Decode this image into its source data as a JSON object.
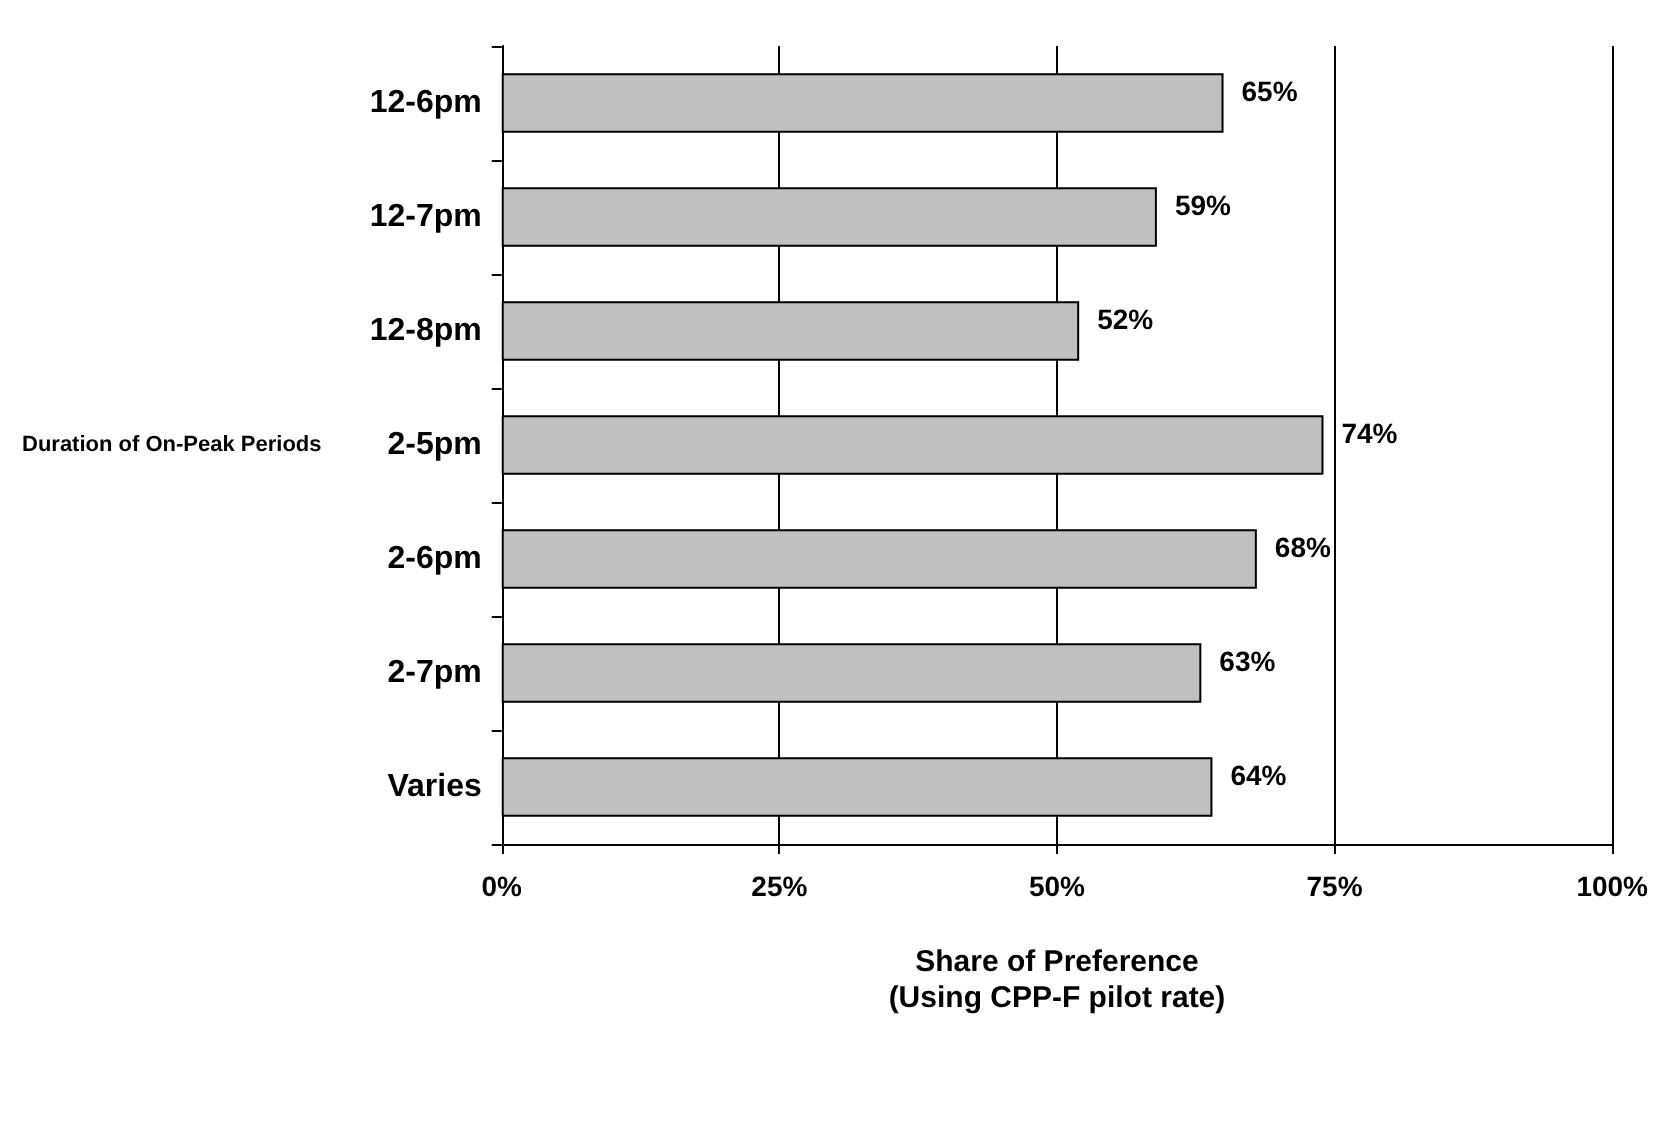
{
  "chart_data": {
    "type": "bar",
    "orientation": "horizontal",
    "categories": [
      "12-6pm",
      "12-7pm",
      "12-8pm",
      "2-5pm",
      "2-6pm",
      "2-7pm",
      "Varies"
    ],
    "values": [
      65,
      59,
      52,
      74,
      68,
      63,
      64
    ],
    "value_labels": [
      "65%",
      "59%",
      "52%",
      "74%",
      "68%",
      "63%",
      "64%"
    ],
    "color": "#c0c0c0",
    "xlim": [
      0,
      100
    ],
    "xticks": [
      {
        "value": 0,
        "label": "0%"
      },
      {
        "value": 25,
        "label": "25%"
      },
      {
        "value": 50,
        "label": "50%"
      },
      {
        "value": 75,
        "label": "75%"
      },
      {
        "value": 100,
        "label": "100%"
      }
    ],
    "xlabel": "Share of Preference\n(Using CPP-F pilot rate)",
    "ylabel": "Duration of On-Peak Periods",
    "grid": "x"
  }
}
